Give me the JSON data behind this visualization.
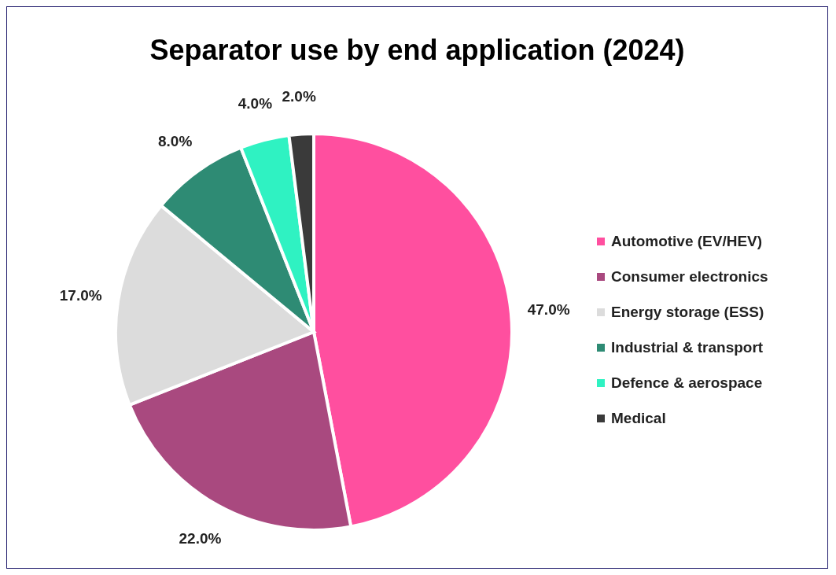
{
  "chart_data": {
    "type": "pie",
    "title": "Separator use by end application (2024)",
    "categories": [
      "Automotive (EV/HEV)",
      "Consumer electronics",
      "Energy storage (ESS)",
      "Industrial & transport",
      "Defence & aerospace",
      "Medical"
    ],
    "values": [
      47,
      22,
      17,
      8,
      4,
      2
    ],
    "value_labels": [
      "47.0%",
      "22.0%",
      "17.0%",
      "8.0%",
      "4.0%",
      "2.0%"
    ],
    "colors": [
      "#ff4f9f",
      "#a9497f",
      "#dcdcdc",
      "#2e8b74",
      "#2ff2c2",
      "#3a3a3a"
    ],
    "legend": "right"
  }
}
